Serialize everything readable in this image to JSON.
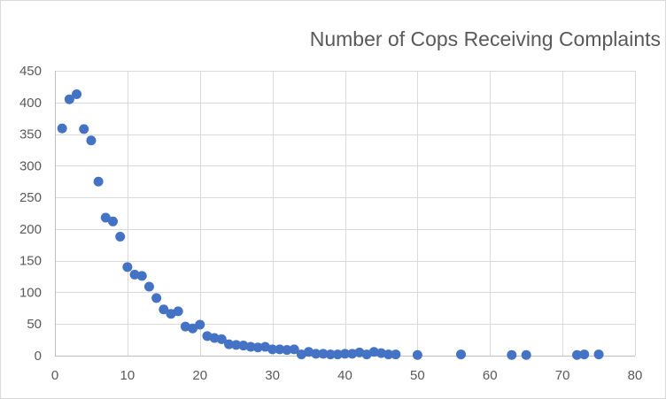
{
  "chart_data": {
    "type": "scatter",
    "title": "Number of Cops Receiving Complaints",
    "xlabel": "",
    "ylabel": "",
    "xlim": [
      0,
      80
    ],
    "ylim": [
      0,
      450
    ],
    "x_ticks": [
      0,
      10,
      20,
      30,
      40,
      50,
      60,
      70,
      80
    ],
    "y_ticks": [
      0,
      50,
      100,
      150,
      200,
      250,
      300,
      350,
      400,
      450
    ],
    "grid": true,
    "legend": "none",
    "marker_color": "#4472c4",
    "grid_color": "#d9d9d9",
    "points": [
      [
        1,
        359
      ],
      [
        2,
        405
      ],
      [
        3,
        413
      ],
      [
        4,
        358
      ],
      [
        5,
        340
      ],
      [
        6,
        275
      ],
      [
        7,
        218
      ],
      [
        8,
        212
      ],
      [
        9,
        188
      ],
      [
        10,
        140
      ],
      [
        11,
        128
      ],
      [
        12,
        126
      ],
      [
        13,
        109
      ],
      [
        14,
        91
      ],
      [
        15,
        73
      ],
      [
        16,
        66
      ],
      [
        17,
        70
      ],
      [
        18,
        46
      ],
      [
        19,
        43
      ],
      [
        20,
        49
      ],
      [
        21,
        31
      ],
      [
        22,
        28
      ],
      [
        23,
        26
      ],
      [
        24,
        18
      ],
      [
        25,
        17
      ],
      [
        26,
        16
      ],
      [
        27,
        14
      ],
      [
        28,
        13
      ],
      [
        29,
        14
      ],
      [
        30,
        10
      ],
      [
        31,
        10
      ],
      [
        32,
        9
      ],
      [
        33,
        10
      ],
      [
        34,
        2
      ],
      [
        35,
        6
      ],
      [
        36,
        3
      ],
      [
        37,
        3
      ],
      [
        38,
        2
      ],
      [
        39,
        2
      ],
      [
        40,
        3
      ],
      [
        41,
        3
      ],
      [
        42,
        5
      ],
      [
        43,
        2
      ],
      [
        44,
        6
      ],
      [
        45,
        4
      ],
      [
        46,
        2
      ],
      [
        47,
        2
      ],
      [
        50,
        1
      ],
      [
        56,
        2
      ],
      [
        63,
        1
      ],
      [
        65,
        1
      ],
      [
        72,
        1
      ],
      [
        73,
        2
      ],
      [
        75,
        2
      ]
    ]
  }
}
